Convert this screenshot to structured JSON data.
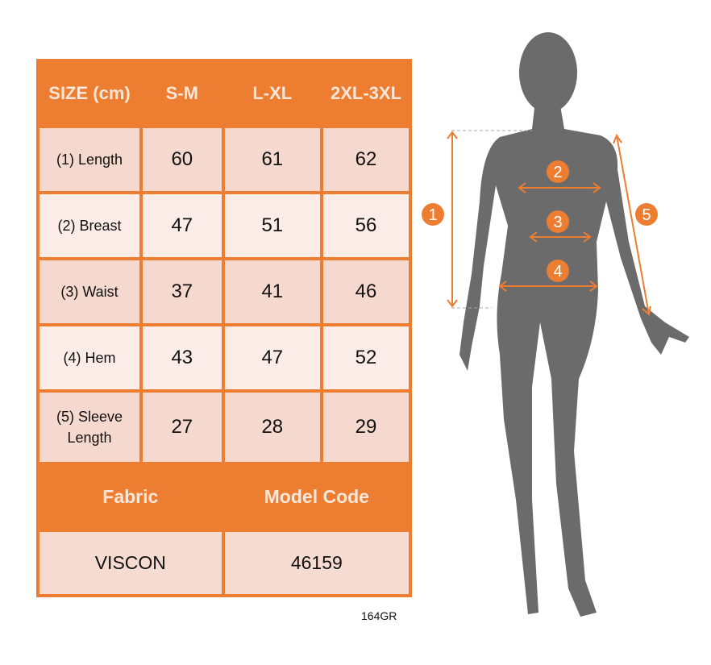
{
  "table": {
    "header": [
      "SIZE (cm)",
      "S-M",
      "L-XL",
      "2XL-3XL"
    ],
    "rows": [
      {
        "label": "(1) Length",
        "values": [
          "60",
          "61",
          "62"
        ]
      },
      {
        "label": "(2) Breast",
        "values": [
          "47",
          "51",
          "56"
        ]
      },
      {
        "label": "(3) Waist",
        "values": [
          "37",
          "41",
          "46"
        ]
      },
      {
        "label": "(4) Hem",
        "values": [
          "43",
          "47",
          "52"
        ]
      },
      {
        "label": "(5) Sleeve Length",
        "values": [
          "27",
          "28",
          "29"
        ]
      }
    ],
    "footer_header": [
      "Fabric",
      "Model Code"
    ],
    "footer_values": [
      "VISCON",
      "46159"
    ]
  },
  "weight": "164GR",
  "markers": [
    "1",
    "2",
    "3",
    "4",
    "5"
  ],
  "colors": {
    "accent": "#ed7d31",
    "silhouette": "#6b6b6b"
  }
}
